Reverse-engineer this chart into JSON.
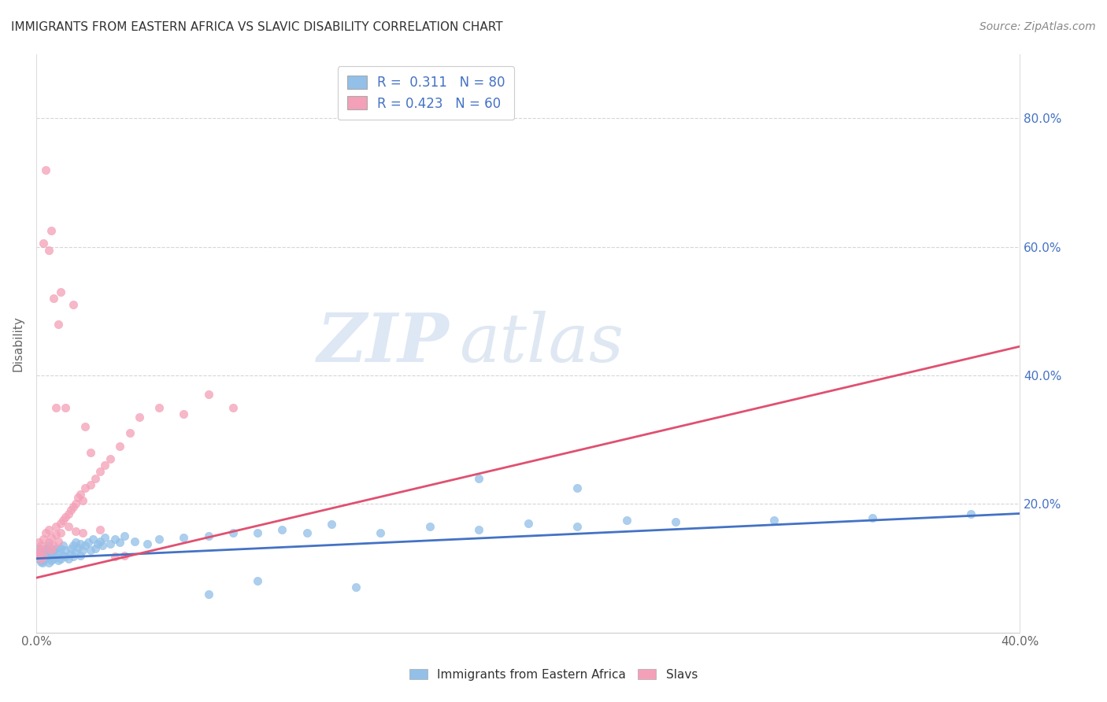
{
  "title": "IMMIGRANTS FROM EASTERN AFRICA VS SLAVIC DISABILITY CORRELATION CHART",
  "source": "Source: ZipAtlas.com",
  "ylabel": "Disability",
  "xlim": [
    0.0,
    0.4
  ],
  "ylim": [
    0.0,
    0.9
  ],
  "xticks": [
    0.0,
    0.1,
    0.2,
    0.3,
    0.4
  ],
  "xtick_labels": [
    "0.0%",
    "",
    "",
    "",
    "40.0%"
  ],
  "ytick_positions_right": [
    0.8,
    0.6,
    0.4,
    0.2
  ],
  "ytick_labels_right": [
    "80.0%",
    "60.0%",
    "40.0%",
    "20.0%"
  ],
  "legend_line1": "R =  0.311   N = 80",
  "legend_line2": "R = 0.423   N = 60",
  "blue_color": "#92c0e8",
  "pink_color": "#f4a0b8",
  "blue_line_color": "#4472c4",
  "pink_line_color": "#e05070",
  "text_blue": "#4472c4",
  "grid_color": "#cccccc",
  "background_color": "#ffffff",
  "blue_scatter_x": [
    0.0005,
    0.001,
    0.001,
    0.0015,
    0.002,
    0.002,
    0.0025,
    0.003,
    0.003,
    0.003,
    0.004,
    0.004,
    0.004,
    0.005,
    0.005,
    0.005,
    0.005,
    0.006,
    0.006,
    0.007,
    0.007,
    0.008,
    0.008,
    0.009,
    0.009,
    0.01,
    0.01,
    0.011,
    0.011,
    0.012,
    0.012,
    0.013,
    0.014,
    0.014,
    0.015,
    0.015,
    0.016,
    0.016,
    0.017,
    0.018,
    0.018,
    0.019,
    0.02,
    0.021,
    0.022,
    0.023,
    0.024,
    0.025,
    0.026,
    0.027,
    0.028,
    0.03,
    0.032,
    0.034,
    0.036,
    0.04,
    0.045,
    0.05,
    0.06,
    0.07,
    0.08,
    0.09,
    0.1,
    0.11,
    0.12,
    0.14,
    0.16,
    0.18,
    0.2,
    0.22,
    0.24,
    0.26,
    0.3,
    0.34,
    0.38,
    0.18,
    0.22,
    0.13,
    0.09,
    0.07
  ],
  "blue_scatter_y": [
    0.12,
    0.115,
    0.13,
    0.118,
    0.11,
    0.125,
    0.108,
    0.112,
    0.12,
    0.128,
    0.115,
    0.122,
    0.13,
    0.108,
    0.118,
    0.125,
    0.135,
    0.112,
    0.12,
    0.115,
    0.128,
    0.118,
    0.13,
    0.112,
    0.125,
    0.115,
    0.13,
    0.12,
    0.135,
    0.118,
    0.128,
    0.115,
    0.13,
    0.122,
    0.135,
    0.118,
    0.14,
    0.125,
    0.132,
    0.12,
    0.138,
    0.128,
    0.135,
    0.14,
    0.128,
    0.145,
    0.13,
    0.138,
    0.142,
    0.135,
    0.148,
    0.138,
    0.145,
    0.14,
    0.15,
    0.142,
    0.138,
    0.145,
    0.148,
    0.15,
    0.155,
    0.155,
    0.16,
    0.155,
    0.168,
    0.155,
    0.165,
    0.16,
    0.17,
    0.165,
    0.175,
    0.172,
    0.175,
    0.178,
    0.185,
    0.24,
    0.225,
    0.07,
    0.08,
    0.06
  ],
  "pink_scatter_x": [
    0.0005,
    0.001,
    0.001,
    0.0015,
    0.002,
    0.002,
    0.003,
    0.003,
    0.004,
    0.004,
    0.005,
    0.005,
    0.006,
    0.006,
    0.007,
    0.008,
    0.008,
    0.009,
    0.01,
    0.01,
    0.011,
    0.012,
    0.013,
    0.014,
    0.015,
    0.016,
    0.017,
    0.018,
    0.019,
    0.02,
    0.022,
    0.024,
    0.026,
    0.028,
    0.03,
    0.034,
    0.038,
    0.042,
    0.05,
    0.06,
    0.07,
    0.08,
    0.02,
    0.008,
    0.005,
    0.003,
    0.007,
    0.01,
    0.015,
    0.012,
    0.004,
    0.006,
    0.009,
    0.013,
    0.016,
    0.019,
    0.022,
    0.026,
    0.032,
    0.036
  ],
  "pink_scatter_y": [
    0.125,
    0.12,
    0.14,
    0.128,
    0.115,
    0.135,
    0.118,
    0.145,
    0.13,
    0.155,
    0.14,
    0.16,
    0.128,
    0.148,
    0.135,
    0.152,
    0.165,
    0.142,
    0.155,
    0.17,
    0.175,
    0.18,
    0.185,
    0.19,
    0.195,
    0.2,
    0.21,
    0.215,
    0.205,
    0.225,
    0.23,
    0.24,
    0.25,
    0.26,
    0.27,
    0.29,
    0.31,
    0.335,
    0.35,
    0.34,
    0.37,
    0.35,
    0.32,
    0.35,
    0.595,
    0.605,
    0.52,
    0.53,
    0.51,
    0.35,
    0.72,
    0.625,
    0.48,
    0.165,
    0.158,
    0.155,
    0.28,
    0.16,
    0.118,
    0.12
  ],
  "blue_line_intercept": 0.115,
  "blue_line_slope": 0.175,
  "pink_line_intercept": 0.085,
  "pink_line_slope": 0.9
}
